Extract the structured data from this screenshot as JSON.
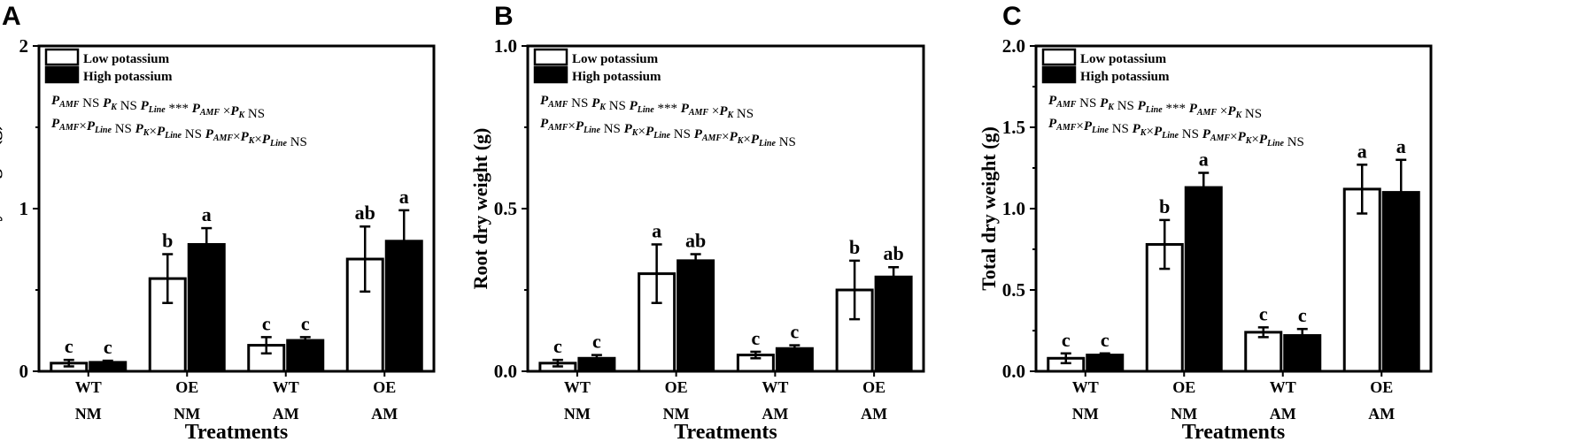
{
  "legend": {
    "low": "Low potassium",
    "high": "High potassium"
  },
  "categories": [
    {
      "genotype": "WT",
      "mycorrhiza": "NM"
    },
    {
      "genotype": "OE",
      "mycorrhiza": "NM"
    },
    {
      "genotype": "WT",
      "mycorrhiza": "AM"
    },
    {
      "genotype": "OE",
      "mycorrhiza": "AM"
    }
  ],
  "stats": {
    "line1": [
      {
        "t": "P",
        "b": true,
        "i": true
      },
      {
        "t": "AMF",
        "sub": true,
        "b": true,
        "i": true
      },
      {
        "t": " NS "
      },
      {
        "t": "P",
        "b": true,
        "i": true
      },
      {
        "t": "K",
        "sub": true,
        "b": true,
        "i": true
      },
      {
        "t": " NS "
      },
      {
        "t": "P",
        "b": true,
        "i": true
      },
      {
        "t": "Line",
        "sub": true,
        "b": true,
        "i": true
      },
      {
        "t": " *** "
      },
      {
        "t": "P",
        "b": true,
        "i": true
      },
      {
        "t": "AMF",
        "sub": true,
        "b": true,
        "i": true
      },
      {
        "t": " ×"
      },
      {
        "t": "P",
        "b": true,
        "i": true
      },
      {
        "t": "K",
        "sub": true,
        "b": true,
        "i": true
      },
      {
        "t": " NS"
      }
    ],
    "line2": [
      {
        "t": "P",
        "b": true,
        "i": true
      },
      {
        "t": "AMF",
        "sub": true,
        "b": true,
        "i": true
      },
      {
        "t": "×"
      },
      {
        "t": "P",
        "b": true,
        "i": true
      },
      {
        "t": "Line",
        "sub": true,
        "b": true,
        "i": true
      },
      {
        "t": " NS "
      },
      {
        "t": "P",
        "b": true,
        "i": true
      },
      {
        "t": "K",
        "sub": true,
        "b": true,
        "i": true
      },
      {
        "t": "×"
      },
      {
        "t": "P",
        "b": true,
        "i": true
      },
      {
        "t": "Line",
        "sub": true,
        "b": true,
        "i": true
      },
      {
        "t": " NS "
      },
      {
        "t": "P",
        "b": true,
        "i": true
      },
      {
        "t": "AMF",
        "sub": true,
        "b": true,
        "i": true
      },
      {
        "t": "×"
      },
      {
        "t": "P",
        "b": true,
        "i": true
      },
      {
        "t": "K",
        "sub": true,
        "b": true,
        "i": true
      },
      {
        "t": "×"
      },
      {
        "t": "P",
        "b": true,
        "i": true
      },
      {
        "t": "Line",
        "sub": true,
        "b": true,
        "i": true
      },
      {
        "t": " NS"
      }
    ]
  },
  "chart_data": [
    {
      "type": "bar",
      "panel_label": "A",
      "ylabel": "Shoot dry weight (g)",
      "xlabel": "Treatments",
      "ylim": [
        0,
        2
      ],
      "yticks": [
        "0",
        "1",
        "2"
      ],
      "minor_ticks": [
        0.5,
        1.5
      ],
      "series": [
        {
          "name": "Low potassium",
          "values": [
            0.05,
            0.57,
            0.16,
            0.69
          ],
          "errors": [
            0.02,
            0.15,
            0.05,
            0.2
          ],
          "letters": [
            "c",
            "b",
            "c",
            "ab"
          ]
        },
        {
          "name": "High potassium",
          "values": [
            0.055,
            0.78,
            0.19,
            0.8
          ],
          "errors": [
            0.01,
            0.1,
            0.02,
            0.19
          ],
          "letters": [
            "c",
            "a",
            "c",
            "a"
          ]
        }
      ]
    },
    {
      "type": "bar",
      "panel_label": "B",
      "ylabel": "Root dry weight (g)",
      "xlabel": "Treatments",
      "ylim": [
        0,
        1
      ],
      "yticks": [
        "0.0",
        "0.5",
        "1.0"
      ],
      "minor_ticks": [
        0.25,
        0.75
      ],
      "series": [
        {
          "name": "Low potassium",
          "values": [
            0.025,
            0.3,
            0.05,
            0.25
          ],
          "errors": [
            0.01,
            0.09,
            0.01,
            0.09
          ],
          "letters": [
            "c",
            "a",
            "c",
            "b"
          ]
        },
        {
          "name": "High potassium",
          "values": [
            0.04,
            0.34,
            0.07,
            0.29
          ],
          "errors": [
            0.01,
            0.02,
            0.01,
            0.03
          ],
          "letters": [
            "c",
            "ab",
            "c",
            "ab"
          ]
        }
      ]
    },
    {
      "type": "bar",
      "panel_label": "C",
      "ylabel": "Total dry weight (g)",
      "xlabel": "Treatments",
      "ylim": [
        0,
        2
      ],
      "yticks": [
        "0.0",
        "0.5",
        "1.0",
        "1.5",
        "2.0"
      ],
      "minor_ticks": [
        0.25,
        0.75,
        1.25,
        1.75
      ],
      "series": [
        {
          "name": "Low potassium",
          "values": [
            0.08,
            0.78,
            0.24,
            1.12
          ],
          "errors": [
            0.03,
            0.15,
            0.03,
            0.15
          ],
          "letters": [
            "c",
            "b",
            "c",
            "a"
          ]
        },
        {
          "name": "High potassium",
          "values": [
            0.1,
            1.13,
            0.22,
            1.1
          ],
          "errors": [
            0.01,
            0.09,
            0.04,
            0.2
          ],
          "letters": [
            "c",
            "a",
            "c",
            "a"
          ]
        }
      ]
    }
  ]
}
